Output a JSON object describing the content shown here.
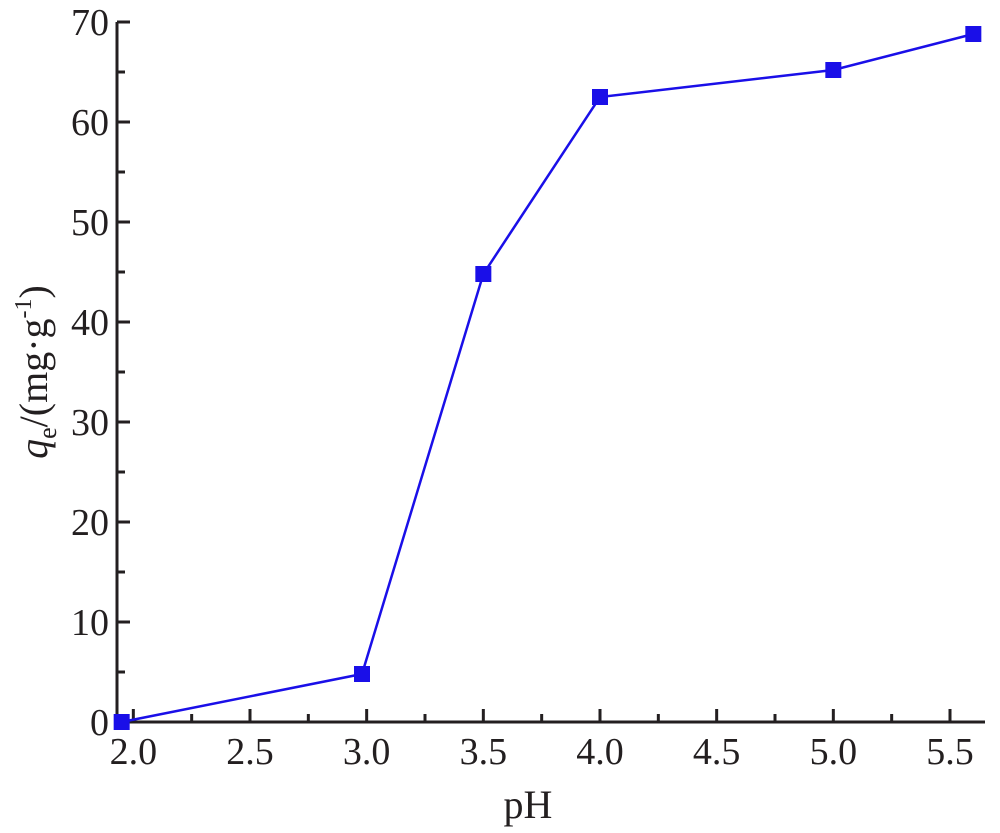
{
  "chart_data": {
    "type": "line",
    "xlabel": "pH",
    "ylabel": {
      "symbol": "q",
      "subscript": "e",
      "unit_open": "/(mg·g",
      "superscript": "-1",
      "unit_close": ")"
    },
    "x_ticks": [
      "2.0",
      "2.5",
      "3.0",
      "3.5",
      "4.0",
      "4.5",
      "5.0",
      "5.5"
    ],
    "y_ticks": [
      "0",
      "10",
      "20",
      "30",
      "40",
      "50",
      "60",
      "70"
    ],
    "xlim": [
      1.93,
      5.65
    ],
    "ylim": [
      0,
      70
    ],
    "grid": false,
    "series": [
      {
        "color": "#1a0fe8",
        "marker": "square",
        "x": [
          1.95,
          2.98,
          3.5,
          4.0,
          5.0,
          5.6
        ],
        "y": [
          0.0,
          4.8,
          44.8,
          62.5,
          65.2,
          68.8
        ]
      }
    ]
  }
}
